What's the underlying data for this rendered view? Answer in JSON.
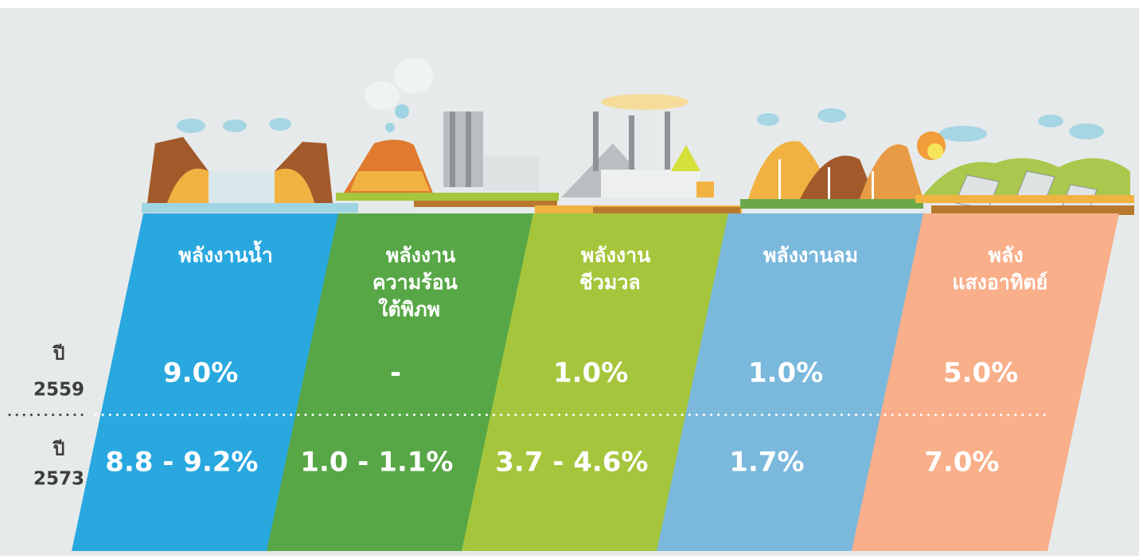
{
  "row_labels": [
    {
      "label": "ปี",
      "year": "2559"
    },
    {
      "label": "ปี",
      "year": "2573"
    }
  ],
  "columns": [
    {
      "title_lines": [
        "พลังงานน้ำ"
      ],
      "color": "#29a8e0",
      "values": [
        "9.0%",
        "8.8 - 9.2%"
      ]
    },
    {
      "title_lines": [
        "พลังงาน",
        "ความร้อน",
        "ใต้พิภพ"
      ],
      "color": "#57a746",
      "values": [
        "-",
        "1.0 - 1.1%"
      ]
    },
    {
      "title_lines": [
        "พลังงาน",
        "ชีวมวล"
      ],
      "color": "#a5c63c",
      "values": [
        "1.0%",
        "3.7 - 4.6%"
      ]
    },
    {
      "title_lines": [
        "พลังงานลม"
      ],
      "color": "#7ab8dc",
      "values": [
        "1.0%",
        "1.7%"
      ]
    },
    {
      "title_lines": [
        "พลัง",
        "แสงอาทิตย์"
      ],
      "color": "#f8af8a",
      "values": [
        "5.0%",
        "7.0%"
      ]
    }
  ]
}
